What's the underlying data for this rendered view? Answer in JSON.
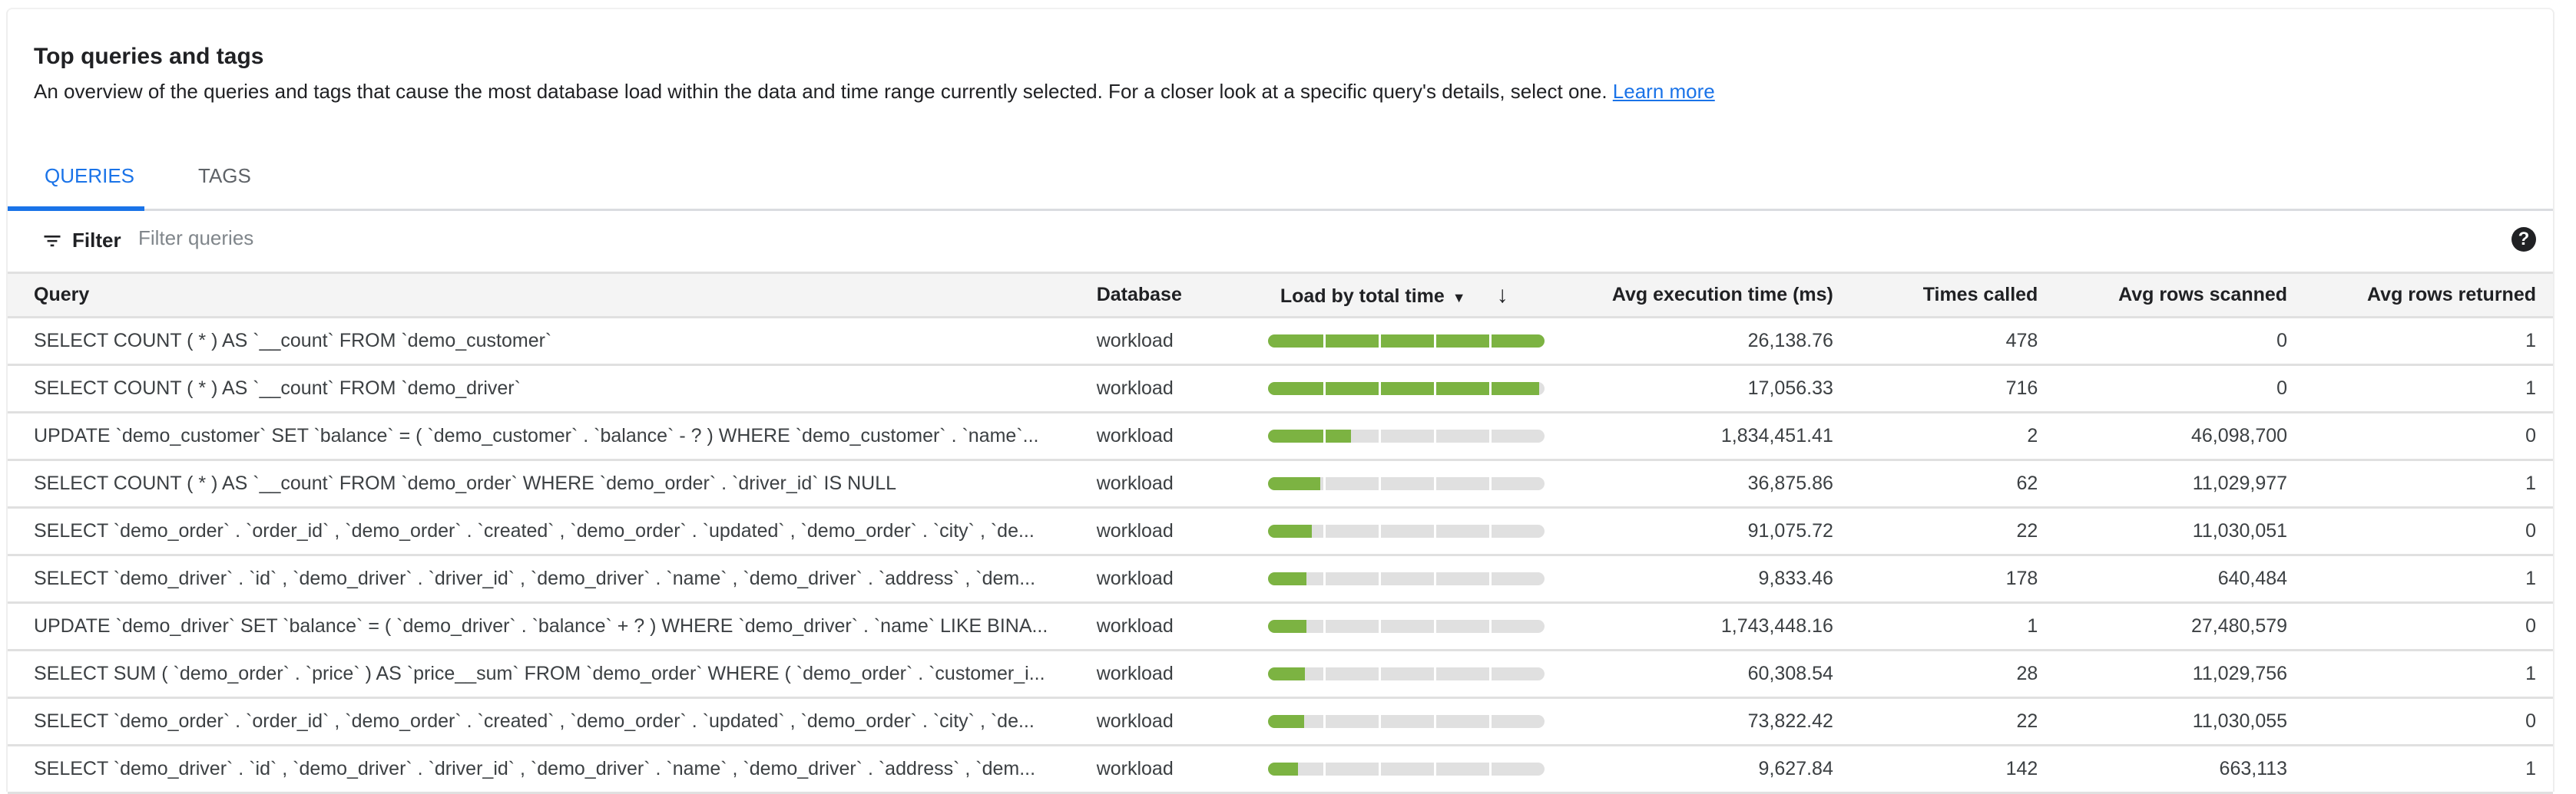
{
  "header": {
    "title": "Top queries and tags",
    "description": "An overview of the queries and tags that cause the most database load within the data and time range currently selected. For a closer look at a specific query's details, select one.",
    "learn_more": "Learn more"
  },
  "tabs": [
    {
      "label": "QUERIES",
      "active": true
    },
    {
      "label": "TAGS",
      "active": false
    }
  ],
  "filter": {
    "label": "Filter",
    "placeholder": "Filter queries",
    "value": "",
    "help_icon": "?"
  },
  "colors": {
    "accent": "#1a73e8",
    "load_bar": "#7cb342",
    "load_bar_track": "#e0e0e0"
  },
  "table": {
    "columns": {
      "query": "Query",
      "database": "Database",
      "load": "Load by total time",
      "avg_exec": "Avg execution time (ms)",
      "times_called": "Times called",
      "rows_scanned": "Avg rows scanned",
      "rows_returned": "Avg rows returned"
    },
    "rows": [
      {
        "query": "SELECT COUNT ( * ) AS `__count` FROM `demo_customer`",
        "database": "workload",
        "load": 1.0,
        "avg_exec": "26,138.76",
        "times_called": "478",
        "rows_scanned": "0",
        "rows_returned": "1"
      },
      {
        "query": "SELECT COUNT ( * ) AS `__count` FROM `demo_driver`",
        "database": "workload",
        "load": 0.98,
        "avg_exec": "17,056.33",
        "times_called": "716",
        "rows_scanned": "0",
        "rows_returned": "1"
      },
      {
        "query": "UPDATE `demo_customer` SET `balance` = ( `demo_customer` . `balance` - ? ) WHERE `demo_customer` . `name`...",
        "database": "workload",
        "load": 0.3,
        "avg_exec": "1,834,451.41",
        "times_called": "2",
        "rows_scanned": "46,098,700",
        "rows_returned": "0"
      },
      {
        "query": "SELECT COUNT ( * ) AS `__count` FROM `demo_order` WHERE `demo_order` . `driver_id` IS NULL",
        "database": "workload",
        "load": 0.19,
        "avg_exec": "36,875.86",
        "times_called": "62",
        "rows_scanned": "11,029,977",
        "rows_returned": "1"
      },
      {
        "query": "SELECT `demo_order` . `order_id` , `demo_order` . `created` , `demo_order` . `updated` , `demo_order` . `city` , `de...",
        "database": "workload",
        "load": 0.16,
        "avg_exec": "91,075.72",
        "times_called": "22",
        "rows_scanned": "11,030,051",
        "rows_returned": "0"
      },
      {
        "query": "SELECT `demo_driver` . `id` , `demo_driver` . `driver_id` , `demo_driver` . `name` , `demo_driver` . `address` , `dem...",
        "database": "workload",
        "load": 0.14,
        "avg_exec": "9,833.46",
        "times_called": "178",
        "rows_scanned": "640,484",
        "rows_returned": "1"
      },
      {
        "query": "UPDATE `demo_driver` SET `balance` = ( `demo_driver` . `balance` + ? ) WHERE `demo_driver` . `name` LIKE BINA...",
        "database": "workload",
        "load": 0.14,
        "avg_exec": "1,743,448.16",
        "times_called": "1",
        "rows_scanned": "27,480,579",
        "rows_returned": "0"
      },
      {
        "query": "SELECT SUM ( `demo_order` . `price` ) AS `price__sum` FROM `demo_order` WHERE ( `demo_order` . `customer_i...",
        "database": "workload",
        "load": 0.135,
        "avg_exec": "60,308.54",
        "times_called": "28",
        "rows_scanned": "11,029,756",
        "rows_returned": "1"
      },
      {
        "query": "SELECT `demo_order` . `order_id` , `demo_order` . `created` , `demo_order` . `updated` , `demo_order` . `city` , `de...",
        "database": "workload",
        "load": 0.13,
        "avg_exec": "73,822.42",
        "times_called": "22",
        "rows_scanned": "11,030,055",
        "rows_returned": "0"
      },
      {
        "query": "SELECT `demo_driver` . `id` , `demo_driver` . `driver_id` , `demo_driver` . `name` , `demo_driver` . `address` , `dem...",
        "database": "workload",
        "load": 0.11,
        "avg_exec": "9,627.84",
        "times_called": "142",
        "rows_scanned": "663,113",
        "rows_returned": "1"
      }
    ]
  }
}
